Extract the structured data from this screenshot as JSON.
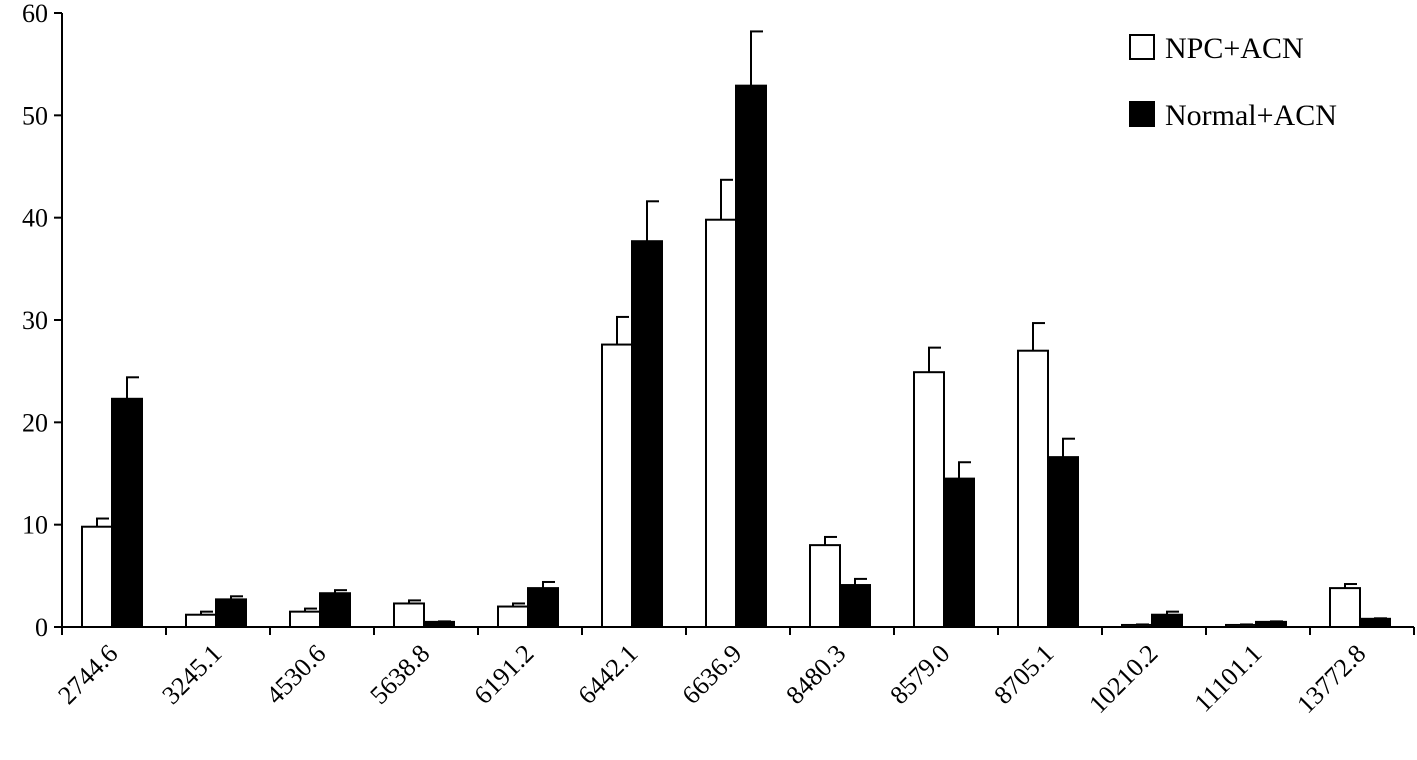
{
  "chart_data": {
    "type": "bar",
    "title": "",
    "xlabel": "",
    "ylabel": "",
    "ylim": [
      0,
      60
    ],
    "yticks": [
      0,
      10,
      20,
      30,
      40,
      50,
      60
    ],
    "grid": false,
    "legend_position": "top-right",
    "categories": [
      "2744.6",
      "3245.1",
      "4530.6",
      "5638.8",
      "6191.2",
      "6442.1",
      "6636.9",
      "8480.3",
      "8579.0",
      "8705.1",
      "10210.2",
      "11101.1",
      "13772.8"
    ],
    "series": [
      {
        "name": "NPC+ACN",
        "color": "#ffffff",
        "values": [
          9.8,
          1.2,
          1.5,
          2.3,
          2.0,
          27.6,
          39.8,
          8.0,
          24.9,
          27.0,
          0.2,
          0.2,
          3.8
        ],
        "errors": [
          0.8,
          0.3,
          0.3,
          0.3,
          0.3,
          2.7,
          3.9,
          0.8,
          2.4,
          2.7,
          0.05,
          0.05,
          0.4
        ]
      },
      {
        "name": "Normal+ACN",
        "color": "#000000",
        "values": [
          22.3,
          2.7,
          3.3,
          0.5,
          3.8,
          37.7,
          52.9,
          4.1,
          14.5,
          16.6,
          1.2,
          0.5,
          0.8
        ],
        "errors": [
          2.1,
          0.3,
          0.3,
          0.05,
          0.6,
          3.9,
          5.3,
          0.6,
          1.6,
          1.8,
          0.3,
          0.05,
          0.05
        ]
      }
    ]
  }
}
